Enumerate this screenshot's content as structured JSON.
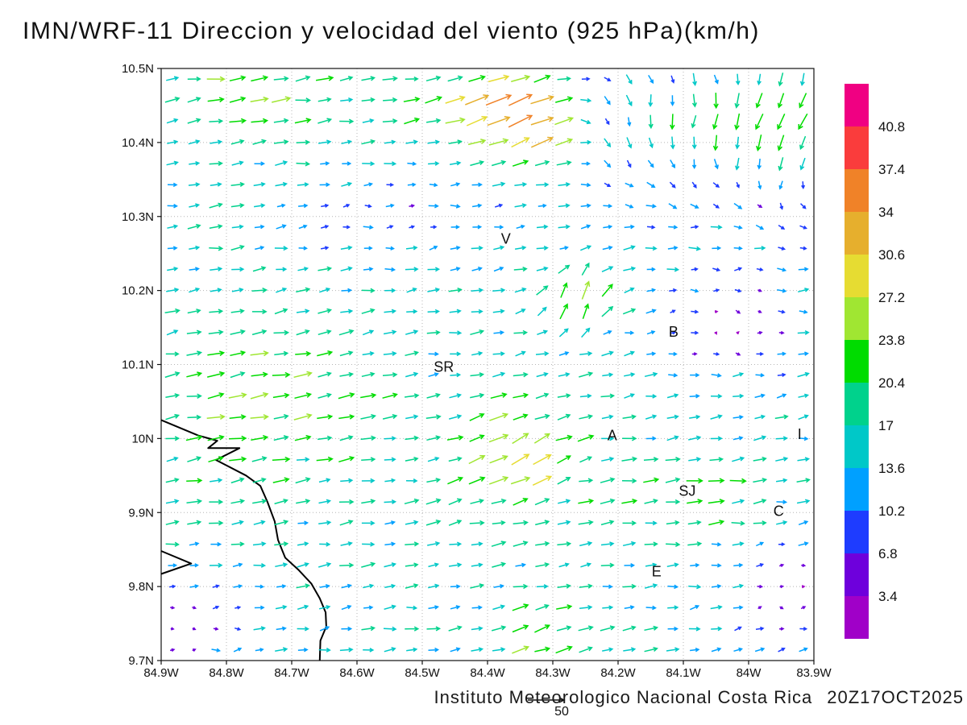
{
  "title": "IMN/WRF-11 Direccion y velocidad del viento (925 hPa)(km/h)",
  "footer": {
    "credit": "Instituto Meteorologico Nacional Costa Rica",
    "datetime": "20Z17OCT2025",
    "ref_label": "50"
  },
  "chart_data": {
    "type": "vector_field",
    "variable": "Direccion y velocidad del viento",
    "level": "925 hPa",
    "unit": "km/h",
    "lon_range": [
      -84.9,
      -83.9
    ],
    "lat_range": [
      9.7,
      10.5
    ],
    "grid_step": 0.1,
    "x_ticks": [
      "84.9W",
      "84.8W",
      "84.7W",
      "84.6W",
      "84.5W",
      "84.4W",
      "84.3W",
      "84.2W",
      "84.1W",
      "84W",
      "83.9W"
    ],
    "y_ticks": [
      "10.5N",
      "10.4N",
      "10.3N",
      "10.2N",
      "10.1N",
      "10N",
      "9.9N",
      "9.8N",
      "9.7N"
    ],
    "colorbar": {
      "levels": [
        3.4,
        6.8,
        10.2,
        13.6,
        17,
        20.4,
        23.8,
        27.2,
        30.6,
        34,
        37.4,
        40.8
      ],
      "labels": [
        "3.4",
        "6.8",
        "10.2",
        "13.6",
        "17",
        "20.4",
        "23.8",
        "27.2",
        "30.6",
        "34",
        "37.4",
        "40.8"
      ],
      "colors": [
        "#A000C8",
        "#6E00DC",
        "#1E3CFF",
        "#00A0FF",
        "#00C8C8",
        "#00D28C",
        "#00DC00",
        "#A0E632",
        "#E6DC32",
        "#E6AF2D",
        "#F08228",
        "#FA3C3C",
        "#F00082"
      ]
    },
    "city_labels": [
      {
        "text": "V",
        "lon": -84.372,
        "lat": 10.27
      },
      {
        "text": "B",
        "lon": -84.115,
        "lat": 10.144
      },
      {
        "text": "SR",
        "lon": -84.467,
        "lat": 10.097
      },
      {
        "text": "A",
        "lon": -84.209,
        "lat": 10.004
      },
      {
        "text": "SJ",
        "lon": -84.094,
        "lat": 9.929
      },
      {
        "text": "C",
        "lon": -83.954,
        "lat": 9.902
      },
      {
        "text": "E",
        "lon": -84.141,
        "lat": 9.82
      },
      {
        "text": "I",
        "lon": -83.922,
        "lat": 10.006
      }
    ],
    "coastline_main": [
      [
        -84.9,
        10.025
      ],
      [
        -84.843,
        10.004
      ],
      [
        -84.814,
        9.997
      ],
      [
        -84.828,
        9.987
      ],
      [
        -84.78,
        9.987
      ],
      [
        -84.816,
        9.971
      ],
      [
        -84.77,
        9.95
      ],
      [
        -84.748,
        9.936
      ],
      [
        -84.737,
        9.914
      ],
      [
        -84.726,
        9.888
      ],
      [
        -84.721,
        9.863
      ],
      [
        -84.71,
        9.839
      ],
      [
        -84.689,
        9.822
      ],
      [
        -84.67,
        9.804
      ],
      [
        -84.657,
        9.784
      ],
      [
        -84.648,
        9.765
      ],
      [
        -84.647,
        9.746
      ],
      [
        -84.656,
        9.727
      ],
      [
        -84.657,
        9.7
      ]
    ],
    "coastline_cape": [
      [
        -84.9,
        9.848
      ],
      [
        -84.854,
        9.831
      ],
      [
        -84.9,
        9.817
      ]
    ],
    "vector_grid": {
      "nx": 30,
      "ny": 28
    },
    "wind_field": {
      "ref_speed": 50,
      "base": {
        "u": 15,
        "v": 2
      },
      "noise": 3.2,
      "seed": 11,
      "blobs": [
        {
          "lon": -84.36,
          "lat": 10.45,
          "rlon": 0.11,
          "rlat": 0.055,
          "du": 20,
          "dv": 15
        },
        {
          "lon": -84.3,
          "lat": 10.4,
          "rlon": 0.06,
          "rlat": 0.04,
          "du": 12,
          "dv": 10
        },
        {
          "lon": -84.1,
          "lat": 10.43,
          "rlon": 0.2,
          "rlat": 0.1,
          "du": -16,
          "dv": -20
        },
        {
          "lon": -83.93,
          "lat": 10.42,
          "rlon": 0.09,
          "rlat": 0.12,
          "du": -18,
          "dv": -14
        },
        {
          "lon": -84.55,
          "lat": 10.3,
          "rlon": 0.16,
          "rlat": 0.06,
          "du": -6,
          "dv": -1
        },
        {
          "lon": -84.03,
          "lat": 10.16,
          "rlon": 0.1,
          "rlat": 0.07,
          "du": -12,
          "dv": -3
        },
        {
          "lon": -84.26,
          "lat": 10.19,
          "rlon": 0.055,
          "rlat": 0.05,
          "du": -6,
          "dv": 22
        },
        {
          "lon": -84.36,
          "lat": 9.98,
          "rlon": 0.1,
          "rlat": 0.085,
          "du": 10,
          "dv": 10
        },
        {
          "lon": -84.86,
          "lat": 9.75,
          "rlon": 0.09,
          "rlat": 0.06,
          "du": -12,
          "dv": -2
        },
        {
          "lon": -83.94,
          "lat": 9.79,
          "rlon": 0.08,
          "rlat": 0.07,
          "du": -12,
          "dv": -2
        },
        {
          "lon": -84.1,
          "lat": 9.93,
          "rlon": 0.12,
          "rlat": 0.05,
          "du": 7,
          "dv": 0
        },
        {
          "lon": -84.75,
          "lat": 10.47,
          "rlon": 0.16,
          "rlat": 0.06,
          "du": 8,
          "dv": 1
        },
        {
          "lon": -84.75,
          "lat": 10.05,
          "rlon": 0.16,
          "rlat": 0.13,
          "du": 8,
          "dv": 2
        },
        {
          "lon": -84.32,
          "lat": 9.74,
          "rlon": 0.07,
          "rlat": 0.05,
          "du": 8,
          "dv": 7
        }
      ]
    }
  }
}
